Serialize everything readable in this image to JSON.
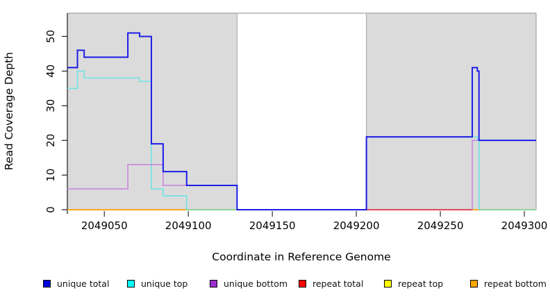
{
  "chart_data": {
    "type": "line",
    "subtype": "step-coverage",
    "title": "",
    "xlabel": "Coordinate in Reference Genome",
    "ylabel": "Read Coverage Depth",
    "xlim": [
      2049028,
      2049307
    ],
    "ylim": [
      0,
      56.7
    ],
    "x_ticks": [
      2049050,
      2049100,
      2049150,
      2049200,
      2049250,
      2049300
    ],
    "y_ticks": [
      0,
      10,
      20,
      30,
      40,
      50
    ],
    "grid": false,
    "legend_position": "bottom",
    "shaded_regions": {
      "fill": "#dbdbdb",
      "border": "#a3a3a3",
      "ranges": [
        [
          2049028,
          2049129
        ],
        [
          2049206,
          2049307
        ]
      ]
    },
    "series": [
      {
        "name": "unique total",
        "color": "#0000e0",
        "line_color": "#1c1ce8",
        "line_width": 2,
        "steps": [
          [
            2049028,
            41
          ],
          [
            2049034,
            46
          ],
          [
            2049038,
            44
          ],
          [
            2049064,
            51
          ],
          [
            2049071,
            50
          ],
          [
            2049078,
            19
          ],
          [
            2049085,
            11
          ],
          [
            2049099,
            7
          ],
          [
            2049129,
            0
          ],
          [
            2049206,
            21
          ],
          [
            2049269,
            41
          ],
          [
            2049272,
            40
          ],
          [
            2049273,
            20
          ]
        ]
      },
      {
        "name": "unique top",
        "color": "#00ffff",
        "line_color": "#74e3e3",
        "line_width": 1.7,
        "steps": [
          [
            2049028,
            35
          ],
          [
            2049034,
            40
          ],
          [
            2049038,
            38
          ],
          [
            2049071,
            37
          ],
          [
            2049078,
            6
          ],
          [
            2049085,
            4
          ],
          [
            2049099,
            0
          ],
          [
            2049206,
            21
          ],
          [
            2049272,
            20
          ],
          [
            2049273,
            0
          ]
        ]
      },
      {
        "name": "unique bottom",
        "color": "#9b2fd0",
        "line_color": "#c481dd",
        "line_width": 1.5,
        "steps": [
          [
            2049028,
            6
          ],
          [
            2049064,
            13
          ],
          [
            2049085,
            7
          ],
          [
            2049129,
            0
          ],
          [
            2049269,
            20
          ]
        ]
      },
      {
        "name": "repeat total",
        "color": "#ff0000",
        "line_color": "#dd4250",
        "line_width": 1.5,
        "steps": [
          [
            2049028,
            0
          ]
        ]
      },
      {
        "name": "repeat top",
        "color": "#ffff00",
        "line_color": "#f5f53a",
        "line_width": 1.5,
        "steps": [
          [
            2049028,
            0
          ]
        ]
      },
      {
        "name": "repeat bottom",
        "color": "#ffa500",
        "line_color": "#ffa512",
        "line_width": 1.7,
        "steps": [
          [
            2049028,
            0
          ]
        ]
      }
    ],
    "baseline_overlays": [
      {
        "name": "green-zero-segment",
        "color": "#8bd391",
        "from": 2049099,
        "to": 2049129
      },
      {
        "name": "repeat-total-zero-segment",
        "color": "#dd4250",
        "from": 2049206,
        "to": 2049269
      },
      {
        "name": "green-zero-segment",
        "color": "#8bd391",
        "from": 2049273,
        "to": 2049307
      }
    ]
  },
  "legend": {
    "items": [
      {
        "label": "unique total",
        "color": "#0000e0"
      },
      {
        "label": "unique top",
        "color": "#00ffff"
      },
      {
        "label": "unique bottom",
        "color": "#9b2fd0"
      },
      {
        "label": "repeat total",
        "color": "#ff0000"
      },
      {
        "label": "repeat top",
        "color": "#ffff00"
      },
      {
        "label": "repeat bottom",
        "color": "#ffa500"
      }
    ]
  }
}
